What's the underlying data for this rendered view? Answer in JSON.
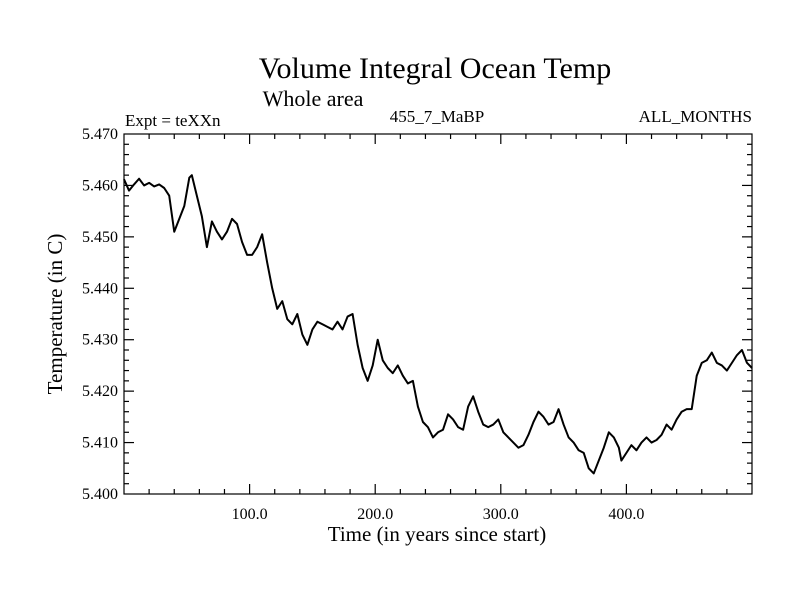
{
  "chart_data": {
    "type": "line",
    "title": "Volume Integral Ocean Temp",
    "subtitle": "Whole area",
    "left_annotation": "Expt = teXXn",
    "center_annotation": "455_7_MaBP",
    "right_annotation": "ALL_MONTHS",
    "xlabel": "Time (in years since start)",
    "ylabel": "Temperature (in C)",
    "xlim": [
      0,
      500
    ],
    "ylim": [
      5.4,
      5.47
    ],
    "x_ticks": [
      {
        "value": 100,
        "label": "100.0"
      },
      {
        "value": 200,
        "label": "200.0"
      },
      {
        "value": 300,
        "label": "300.0"
      },
      {
        "value": 400,
        "label": "400.0"
      }
    ],
    "y_ticks": [
      {
        "value": 5.4,
        "label": "5.400"
      },
      {
        "value": 5.41,
        "label": "5.410"
      },
      {
        "value": 5.42,
        "label": "5.420"
      },
      {
        "value": 5.43,
        "label": "5.430"
      },
      {
        "value": 5.44,
        "label": "5.440"
      },
      {
        "value": 5.45,
        "label": "5.450"
      },
      {
        "value": 5.46,
        "label": "5.460"
      },
      {
        "value": 5.47,
        "label": "5.470"
      }
    ],
    "grid": false,
    "series": [
      {
        "name": "Volume Integral Ocean Temp",
        "x": [
          0,
          4,
          8,
          12,
          16,
          20,
          24,
          28,
          32,
          36,
          40,
          44,
          48,
          52,
          54,
          58,
          62,
          66,
          70,
          74,
          78,
          82,
          86,
          90,
          94,
          98,
          102,
          106,
          110,
          114,
          118,
          122,
          126,
          130,
          134,
          138,
          142,
          146,
          150,
          154,
          158,
          162,
          166,
          170,
          174,
          178,
          182,
          186,
          190,
          194,
          198,
          202,
          206,
          210,
          214,
          218,
          222,
          226,
          230,
          234,
          238,
          242,
          246,
          250,
          254,
          258,
          262,
          266,
          270,
          274,
          278,
          282,
          286,
          290,
          294,
          298,
          302,
          306,
          310,
          314,
          318,
          322,
          326,
          330,
          334,
          338,
          342,
          346,
          350,
          354,
          358,
          362,
          366,
          370,
          374,
          378,
          382,
          386,
          390,
          394,
          396,
          400,
          404,
          408,
          412,
          416,
          420,
          424,
          428,
          432,
          436,
          440,
          444,
          448,
          452,
          456,
          460,
          464,
          468,
          472,
          476,
          480,
          484,
          488,
          492,
          496,
          500
        ],
        "values": [
          5.4612,
          5.459,
          5.4602,
          5.4613,
          5.46,
          5.4605,
          5.4598,
          5.4602,
          5.4595,
          5.458,
          5.451,
          5.4535,
          5.456,
          5.4615,
          5.462,
          5.458,
          5.454,
          5.448,
          5.453,
          5.451,
          5.4495,
          5.451,
          5.4535,
          5.4525,
          5.449,
          5.4465,
          5.4465,
          5.448,
          5.4505,
          5.445,
          5.44,
          5.436,
          5.4375,
          5.434,
          5.433,
          5.435,
          5.431,
          5.429,
          5.432,
          5.4335,
          5.433,
          5.4325,
          5.432,
          5.4335,
          5.432,
          5.4345,
          5.435,
          5.429,
          5.4245,
          5.422,
          5.425,
          5.43,
          5.426,
          5.4245,
          5.4235,
          5.425,
          5.423,
          5.4215,
          5.422,
          5.417,
          5.414,
          5.413,
          5.411,
          5.412,
          5.4125,
          5.4155,
          5.4145,
          5.413,
          5.4125,
          5.417,
          5.419,
          5.416,
          5.4135,
          5.413,
          5.4135,
          5.4145,
          5.412,
          5.411,
          5.41,
          5.409,
          5.4095,
          5.4115,
          5.414,
          5.416,
          5.415,
          5.4135,
          5.414,
          5.4165,
          5.4135,
          5.411,
          5.41,
          5.4085,
          5.408,
          5.405,
          5.404,
          5.4065,
          5.409,
          5.412,
          5.411,
          5.409,
          5.4065,
          5.408,
          5.4095,
          5.4085,
          5.41,
          5.411,
          5.41,
          5.4105,
          5.4115,
          5.4135,
          5.4125,
          5.4145,
          5.416,
          5.4165,
          5.4165,
          5.423,
          5.4255,
          5.426,
          5.4275,
          5.4255,
          5.425,
          5.424,
          5.4255,
          5.427,
          5.428,
          5.4255,
          5.4245
        ]
      }
    ]
  }
}
